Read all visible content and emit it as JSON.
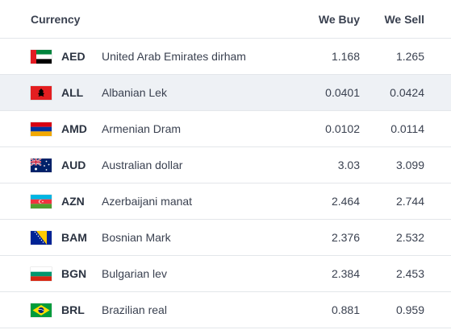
{
  "header": {
    "currency": "Currency",
    "we_buy": "We Buy",
    "we_sell": "We Sell"
  },
  "rows": [
    {
      "code": "AED",
      "name": "United Arab Emirates dirham",
      "buy": "1.168",
      "sell": "1.265",
      "flag": "uae-flag-icon"
    },
    {
      "code": "ALL",
      "name": "Albanian Lek",
      "buy": "0.0401",
      "sell": "0.0424",
      "flag": "albania-flag-icon"
    },
    {
      "code": "AMD",
      "name": "Armenian Dram",
      "buy": "0.0102",
      "sell": "0.0114",
      "flag": "armenia-flag-icon"
    },
    {
      "code": "AUD",
      "name": "Australian dollar",
      "buy": "3.03",
      "sell": "3.099",
      "flag": "australia-flag-icon"
    },
    {
      "code": "AZN",
      "name": "Azerbaijani manat",
      "buy": "2.464",
      "sell": "2.744",
      "flag": "azerbaijan-flag-icon"
    },
    {
      "code": "BAM",
      "name": "Bosnian Mark",
      "buy": "2.376",
      "sell": "2.532",
      "flag": "bosnia-flag-icon"
    },
    {
      "code": "BGN",
      "name": "Bulgarian lev",
      "buy": "2.384",
      "sell": "2.453",
      "flag": "bulgaria-flag-icon"
    },
    {
      "code": "BRL",
      "name": "Brazilian real",
      "buy": "0.881",
      "sell": "0.959",
      "flag": "brazil-flag-icon"
    }
  ],
  "colors": {
    "row_highlight": "#eef1f5",
    "divider": "#e3e6ea"
  }
}
